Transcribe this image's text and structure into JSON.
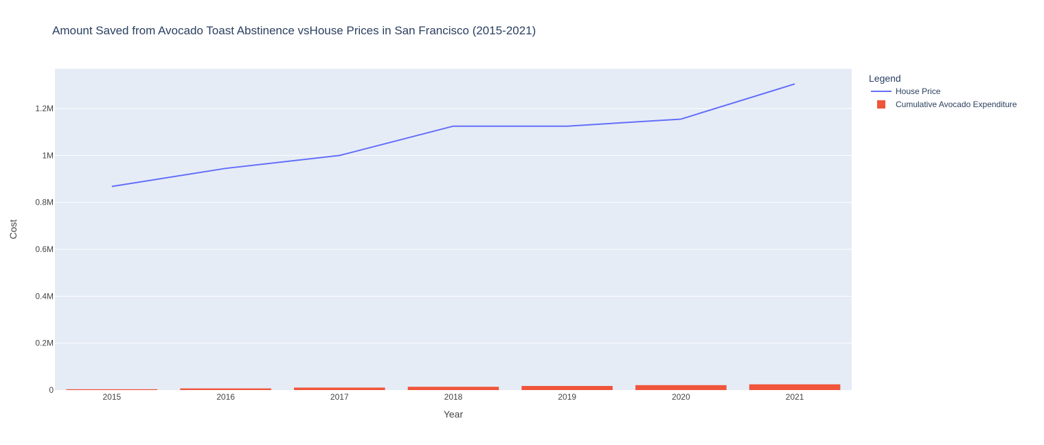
{
  "chart_data": {
    "type": "bar+line",
    "title": "Amount Saved from Avocado Toast Abstinence vsHouse Prices in San Francisco (2015-2021)",
    "xlabel": "Year",
    "ylabel": "Cost",
    "categories": [
      "2015",
      "2016",
      "2017",
      "2018",
      "2019",
      "2020",
      "2021"
    ],
    "ylim": [
      0,
      1370000
    ],
    "yticks": [
      0,
      200000,
      400000,
      600000,
      800000,
      1000000,
      1200000
    ],
    "ytick_labels": [
      "0",
      "0.2M",
      "0.4M",
      "0.6M",
      "0.8M",
      "1M",
      "1.2M"
    ],
    "grid": true,
    "legend": {
      "title": "Legend",
      "position": "right"
    },
    "series": [
      {
        "name": "House Price",
        "type": "line",
        "color": "#636efa",
        "values": [
          868000,
          945000,
          1000000,
          1125000,
          1125000,
          1155000,
          1305000
        ]
      },
      {
        "name": "Cumulative Avocado Expenditure",
        "type": "bar",
        "color": "#ef553b",
        "values": [
          3500,
          7000,
          10500,
          14000,
          17500,
          21000,
          24500
        ]
      }
    ]
  }
}
